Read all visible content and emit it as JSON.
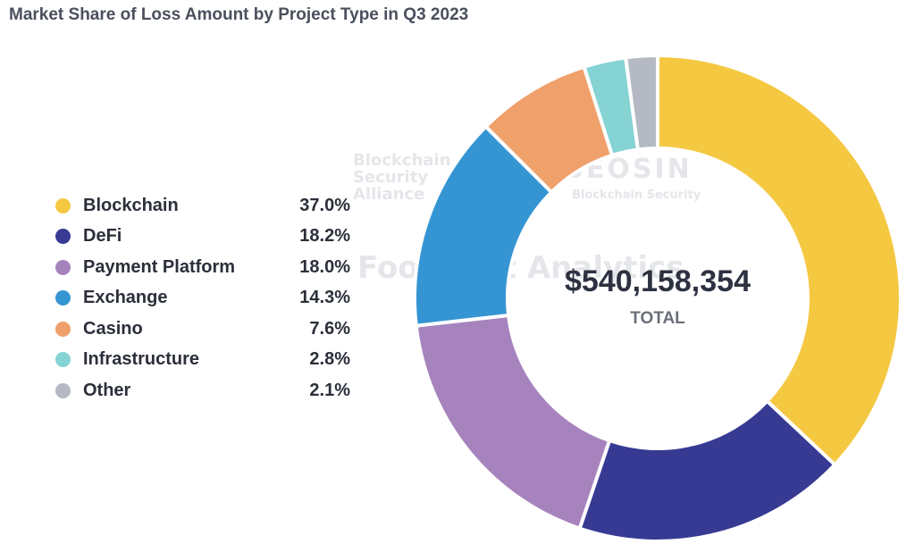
{
  "chart_data": {
    "type": "pie",
    "title": "Market Share of Loss Amount by Project Type in Q3 2023",
    "total_value": "$540,158,354",
    "total_label": "TOTAL",
    "categories": [
      "Blockchain",
      "DeFi",
      "Payment Platform",
      "Exchange",
      "Casino",
      "Infrastructure",
      "Other"
    ],
    "values": [
      37.0,
      18.2,
      18.0,
      14.3,
      7.6,
      2.8,
      2.1
    ],
    "value_labels": [
      "37.0%",
      "18.2%",
      "18.0%",
      "14.3%",
      "7.6%",
      "2.8%",
      "2.1%"
    ],
    "colors": [
      "#f5c842",
      "#373a93",
      "#a783be",
      "#3595d3",
      "#f0a06a",
      "#86d3d4",
      "#b4b9c3"
    ],
    "legend_position": "left"
  },
  "watermarks": {
    "bsa_line1": "Blockchain",
    "bsa_line2": "Security",
    "bsa_line3": "Alliance",
    "beosin": "BEOSIN",
    "beosin_sub": "Blockchain Security",
    "footprint": "Footprint Analytics"
  }
}
